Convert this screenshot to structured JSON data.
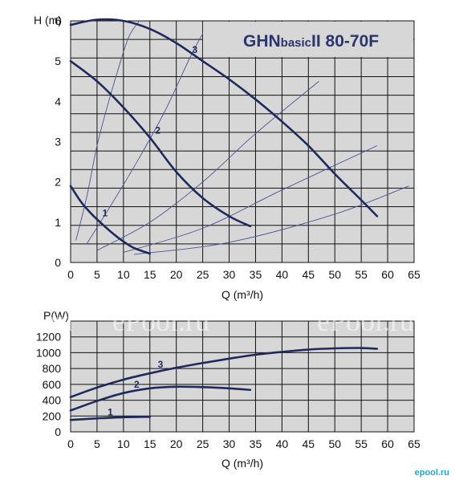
{
  "chart_data": [
    {
      "type": "line",
      "title": "GHNbasicII 80-70F",
      "title_main": "GHN",
      "title_small": "basic",
      "title_model": "II 80-70F",
      "ylabel": "H (m)",
      "xlabel": "Q (m³/h)",
      "xlim": [
        0,
        65
      ],
      "ylim": [
        0,
        6
      ],
      "grid": true,
      "xticks": [
        "0",
        "5",
        "10",
        "15",
        "20",
        "25",
        "30",
        "35",
        "40",
        "45",
        "50",
        "55",
        "60",
        "65"
      ],
      "yticks": [
        "0",
        "1",
        "2",
        "3",
        "4",
        "5",
        "6"
      ],
      "series": [
        {
          "name": "1",
          "x": [
            0,
            2,
            4,
            6,
            8,
            10,
            12,
            15
          ],
          "y": [
            1.9,
            1.5,
            1.2,
            0.95,
            0.72,
            0.52,
            0.36,
            0.22
          ]
        },
        {
          "name": "2",
          "x": [
            0,
            5,
            10,
            15,
            20,
            25,
            30,
            34
          ],
          "y": [
            5.0,
            4.5,
            3.85,
            3.1,
            2.25,
            1.6,
            1.15,
            0.9
          ]
        },
        {
          "name": "3",
          "x": [
            0,
            5,
            10,
            15,
            20,
            25,
            30,
            35,
            40,
            45,
            50,
            55,
            58
          ],
          "y": [
            5.9,
            6.03,
            6.0,
            5.8,
            5.45,
            5.0,
            4.55,
            4.05,
            3.5,
            2.9,
            2.2,
            1.55,
            1.15
          ]
        }
      ],
      "system_curves": [
        {
          "x": [
            1,
            3,
            5,
            7,
            9,
            11,
            13
          ],
          "y": [
            0.55,
            1.6,
            2.9,
            3.9,
            4.8,
            5.6,
            6.0
          ]
        },
        {
          "x": [
            3,
            8,
            13,
            18,
            23,
            26
          ],
          "y": [
            0.45,
            1.5,
            2.6,
            3.8,
            5.2,
            5.9
          ]
        },
        {
          "x": [
            5,
            15,
            25,
            35,
            47
          ],
          "y": [
            0.3,
            1.0,
            2.0,
            3.2,
            4.5
          ]
        },
        {
          "x": [
            10,
            25,
            40,
            58
          ],
          "y": [
            0.25,
            0.85,
            1.8,
            2.9
          ]
        },
        {
          "x": [
            12,
            30,
            50,
            64
          ],
          "y": [
            0.2,
            0.5,
            1.2,
            1.9
          ]
        }
      ]
    },
    {
      "type": "line",
      "ylabel": "P(W)",
      "xlabel": "Q (m³/h)",
      "xlim": [
        0,
        65
      ],
      "ylim": [
        0,
        1200
      ],
      "grid": true,
      "xticks": [
        "0",
        "5",
        "10",
        "15",
        "20",
        "25",
        "30",
        "35",
        "40",
        "45",
        "50",
        "55",
        "60",
        "65"
      ],
      "yticks": [
        "0",
        "200",
        "400",
        "600",
        "800",
        "1000",
        "1200"
      ],
      "series": [
        {
          "name": "1",
          "x": [
            0,
            5,
            10,
            15
          ],
          "y": [
            150,
            170,
            185,
            190
          ]
        },
        {
          "name": "2",
          "x": [
            0,
            5,
            10,
            15,
            20,
            25,
            30,
            34
          ],
          "y": [
            270,
            390,
            490,
            550,
            570,
            565,
            550,
            530
          ]
        },
        {
          "name": "3",
          "x": [
            0,
            5,
            10,
            15,
            20,
            25,
            30,
            35,
            40,
            45,
            50,
            55,
            58
          ],
          "y": [
            440,
            560,
            660,
            740,
            810,
            870,
            925,
            975,
            1010,
            1040,
            1055,
            1060,
            1050
          ]
        }
      ]
    }
  ],
  "watermarks": [
    "ePool.ru",
    "ePool.ru",
    "ePool.ru"
  ],
  "brand": "epool.ru",
  "colors": {
    "plot_bg": "#d7d7d7",
    "grid": "#111111",
    "curve": "#1f2a5c",
    "system_curve": "#4a5590"
  }
}
